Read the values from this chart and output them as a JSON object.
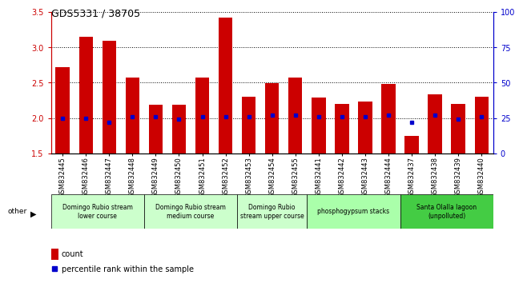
{
  "title": "GDS5331 / 38705",
  "samples": [
    "GSM832445",
    "GSM832446",
    "GSM832447",
    "GSM832448",
    "GSM832449",
    "GSM832450",
    "GSM832451",
    "GSM832452",
    "GSM832453",
    "GSM832454",
    "GSM832455",
    "GSM832441",
    "GSM832442",
    "GSM832443",
    "GSM832444",
    "GSM832437",
    "GSM832438",
    "GSM832439",
    "GSM832440"
  ],
  "counts": [
    2.72,
    3.15,
    3.09,
    2.57,
    2.19,
    2.19,
    2.57,
    3.42,
    2.3,
    2.49,
    2.57,
    2.29,
    2.2,
    2.23,
    2.48,
    1.75,
    2.33,
    2.2,
    2.3
  ],
  "percentiles": [
    25,
    25,
    22,
    26,
    26,
    24,
    26,
    26,
    26,
    27,
    27,
    26,
    26,
    26,
    27,
    22,
    27,
    24,
    26
  ],
  "bar_bottom": 1.5,
  "ylim_left": [
    1.5,
    3.5
  ],
  "ylim_right": [
    0,
    100
  ],
  "yticks_left": [
    1.5,
    2.0,
    2.5,
    3.0,
    3.5
  ],
  "yticks_right": [
    0,
    25,
    50,
    75,
    100
  ],
  "bar_color": "#cc0000",
  "dot_color": "#0000cc",
  "groups": [
    {
      "label": "Domingo Rubio stream\nlower course",
      "start": 0,
      "end": 3,
      "color": "#ccffcc"
    },
    {
      "label": "Domingo Rubio stream\nmedium course",
      "start": 4,
      "end": 7,
      "color": "#ccffcc"
    },
    {
      "label": "Domingo Rubio\nstream upper course",
      "start": 8,
      "end": 10,
      "color": "#ccffcc"
    },
    {
      "label": "phosphogypsum stacks",
      "start": 11,
      "end": 14,
      "color": "#aaffaa"
    },
    {
      "label": "Santa Olalla lagoon\n(unpolluted)",
      "start": 15,
      "end": 18,
      "color": "#44cc44"
    }
  ],
  "tick_label_fontsize": 6,
  "group_label_fontsize": 5.5,
  "title_fontsize": 9,
  "legend_fontsize": 7,
  "left_axis_color": "#cc0000",
  "right_axis_color": "#0000cc"
}
